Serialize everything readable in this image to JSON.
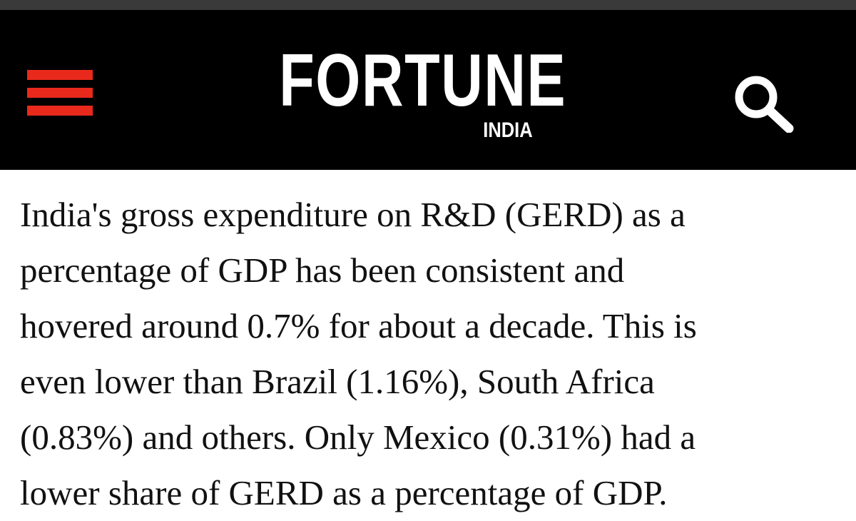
{
  "header": {
    "brand": "FORTUNE",
    "edition": "INDIA",
    "menu_icon": "hamburger-menu-icon",
    "search_icon": "search-icon",
    "accent_color": "#e8291c",
    "background_color": "#000000"
  },
  "article": {
    "paragraph_lines": [
      "India's gross expenditure on R&D (GERD) as a",
      "percentage of GDP has been consistent and",
      "hovered around 0.7% for about a decade. This is",
      "even lower than Brazil (1.16%), South Africa",
      "(0.83%) and others. Only Mexico (0.31%) had a",
      "lower share of GERD as a percentage of GDP."
    ]
  }
}
